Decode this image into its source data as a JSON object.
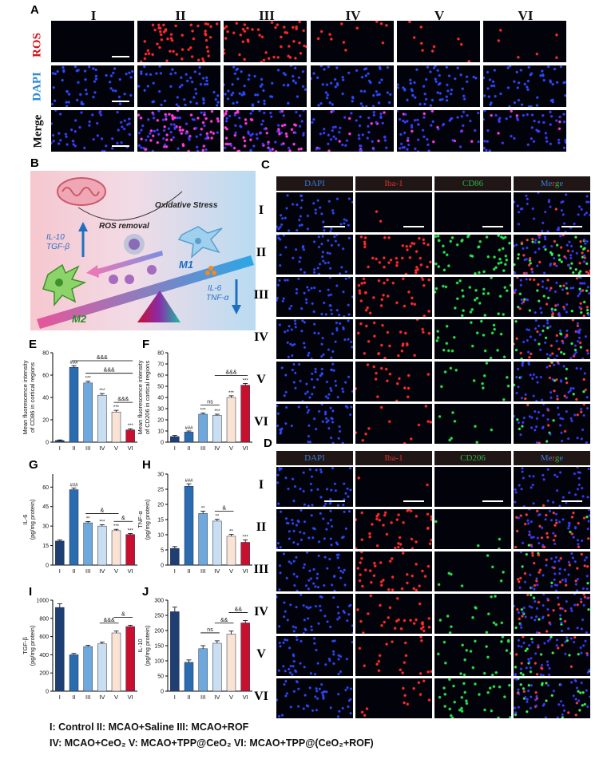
{
  "panels": {
    "A": "A",
    "B": "B",
    "C": "C",
    "D": "D",
    "E": "E",
    "F": "F",
    "G": "G",
    "H": "H",
    "I": "I",
    "J": "J"
  },
  "groups": [
    "I",
    "II",
    "III",
    "IV",
    "V",
    "VI"
  ],
  "panelA": {
    "rows": [
      "ROS",
      "DAPI",
      "Merge"
    ],
    "row_colors": [
      "#d4141c",
      "#2a8ad8",
      "#111111"
    ]
  },
  "panelC": {
    "headers": [
      "DAPI",
      "Iba-1",
      "CD86",
      "Merge"
    ]
  },
  "panelD": {
    "headers": [
      "DAPI",
      "Iba-1",
      "CD206",
      "Merge"
    ]
  },
  "header_colors": [
    "#3a7bd5",
    "#e03030",
    "#2cb34a"
  ],
  "diagram": {
    "oxidative": "Oxidative Stress",
    "ros_removal": "ROS removal",
    "il10": "IL-10",
    "tgfb": "TGF-β",
    "m1": "M1",
    "m2": "M2",
    "il6": "IL-6",
    "tnfa": "TNF-α"
  },
  "bar_colors": [
    "#1f3f73",
    "#2b6cb0",
    "#6fa8dc",
    "#c9def1",
    "#fbe3d3",
    "#c8102e"
  ],
  "legend": {
    "line1": "I: Control  II: MCAO+Saline  III: MCAO+ROF",
    "line2": "IV: MCAO+CeO₂  V: MCAO+TPP@CeO₂  VI: MCAO+TPP@(CeO₂+ROF)"
  },
  "chart_data": [
    {
      "id": "E",
      "type": "bar",
      "categories": [
        "I",
        "II",
        "III",
        "IV",
        "V",
        "VI"
      ],
      "values": [
        1.5,
        67,
        53,
        42,
        27,
        11
      ],
      "errors": [
        0.5,
        1.5,
        1.5,
        1.5,
        1.5,
        1
      ],
      "ylabel": "Mean fluorescence intensity of CD86 in cortical regions",
      "ylim": [
        0,
        80
      ],
      "yticks": [
        0,
        20,
        40,
        60,
        80
      ],
      "stars": [
        "",
        "###",
        "***",
        "***",
        "***",
        "***"
      ],
      "comparisons": [
        {
          "from": 1,
          "to": 5,
          "label": "&&&"
        },
        {
          "from": 2,
          "to": 5,
          "label": "&&&"
        },
        {
          "from": 4,
          "to": 5,
          "label": "&&&"
        }
      ]
    },
    {
      "id": "F",
      "type": "bar",
      "categories": [
        "I",
        "II",
        "III",
        "IV",
        "V",
        "VI"
      ],
      "values": [
        5,
        9,
        25,
        24,
        40,
        51
      ],
      "errors": [
        1,
        1,
        1,
        1,
        1.5,
        1.5
      ],
      "ylabel": "Mean fluorescence intensity of CD206 in cortical regions",
      "ylim": [
        0,
        80
      ],
      "yticks": [
        0,
        10,
        20,
        30,
        40,
        50,
        60,
        70,
        80
      ],
      "stars": [
        "",
        "###",
        "***",
        "***",
        "***",
        "***"
      ],
      "comparisons": [
        {
          "from": 2,
          "to": 3,
          "label": "ns"
        },
        {
          "from": 3,
          "to": 5,
          "label": "&&&"
        }
      ]
    },
    {
      "id": "G",
      "type": "bar",
      "categories": [
        "I",
        "II",
        "III",
        "IV",
        "V",
        "VI"
      ],
      "values": [
        18.5,
        58,
        32.5,
        30,
        26.5,
        23.5
      ],
      "errors": [
        0.8,
        1.2,
        1,
        1,
        1,
        0.8
      ],
      "ylabel": "IL-6 (pg/mg protein)",
      "ylim": [
        0,
        70
      ],
      "yticks": [
        0,
        15,
        30,
        45,
        60
      ],
      "stars": [
        "",
        "###",
        "**",
        "***",
        "***",
        "***"
      ],
      "comparisons": [
        {
          "from": 2,
          "to": 4,
          "label": "&"
        },
        {
          "from": 4,
          "to": 5,
          "label": "&"
        }
      ]
    },
    {
      "id": "H",
      "type": "bar",
      "categories": [
        "I",
        "II",
        "III",
        "IV",
        "V",
        "VI"
      ],
      "values": [
        5.5,
        26,
        17,
        14.5,
        9.5,
        7.5
      ],
      "errors": [
        0.6,
        0.8,
        0.8,
        0.6,
        0.6,
        0.8
      ],
      "ylabel": "TNF-α (pg/mg protein)",
      "ylim": [
        0,
        30
      ],
      "yticks": [
        0,
        5,
        10,
        15,
        20,
        25,
        30
      ],
      "stars": [
        "",
        "###",
        "**",
        "**",
        "**",
        "***"
      ],
      "comparisons": [
        {
          "from": 3,
          "to": 4,
          "label": "&"
        }
      ]
    },
    {
      "id": "I",
      "type": "bar",
      "categories": [
        "I",
        "II",
        "III",
        "IV",
        "V",
        "VI"
      ],
      "values": [
        920,
        400,
        490,
        520,
        640,
        710
      ],
      "errors": [
        40,
        15,
        15,
        20,
        20,
        15
      ],
      "ylabel": "TGF-β (pg/mg protein)",
      "ylim": [
        0,
        1000
      ],
      "yticks": [
        0,
        200,
        400,
        600,
        800,
        1000
      ],
      "stars": [
        "",
        "",
        "",
        "",
        "",
        ""
      ],
      "comparisons": [
        {
          "from": 3,
          "to": 4,
          "label": "&&&"
        },
        {
          "from": 4,
          "to": 5,
          "label": "&"
        }
      ]
    },
    {
      "id": "J",
      "type": "bar",
      "categories": [
        "I",
        "II",
        "III",
        "IV",
        "V",
        "VI"
      ],
      "values": [
        262,
        95,
        140,
        158,
        188,
        225
      ],
      "errors": [
        15,
        8,
        10,
        8,
        10,
        8
      ],
      "ylabel": "IL-10 (pg/mg protein)",
      "ylim": [
        0,
        300
      ],
      "yticks": [
        0,
        50,
        100,
        150,
        200,
        250,
        300
      ],
      "stars": [
        "",
        "",
        "",
        "",
        "",
        ""
      ],
      "comparisons": [
        {
          "from": 2,
          "to": 3,
          "label": "ns"
        },
        {
          "from": 3,
          "to": 4,
          "label": "&&"
        },
        {
          "from": 4,
          "to": 5,
          "label": "&&"
        }
      ]
    }
  ]
}
